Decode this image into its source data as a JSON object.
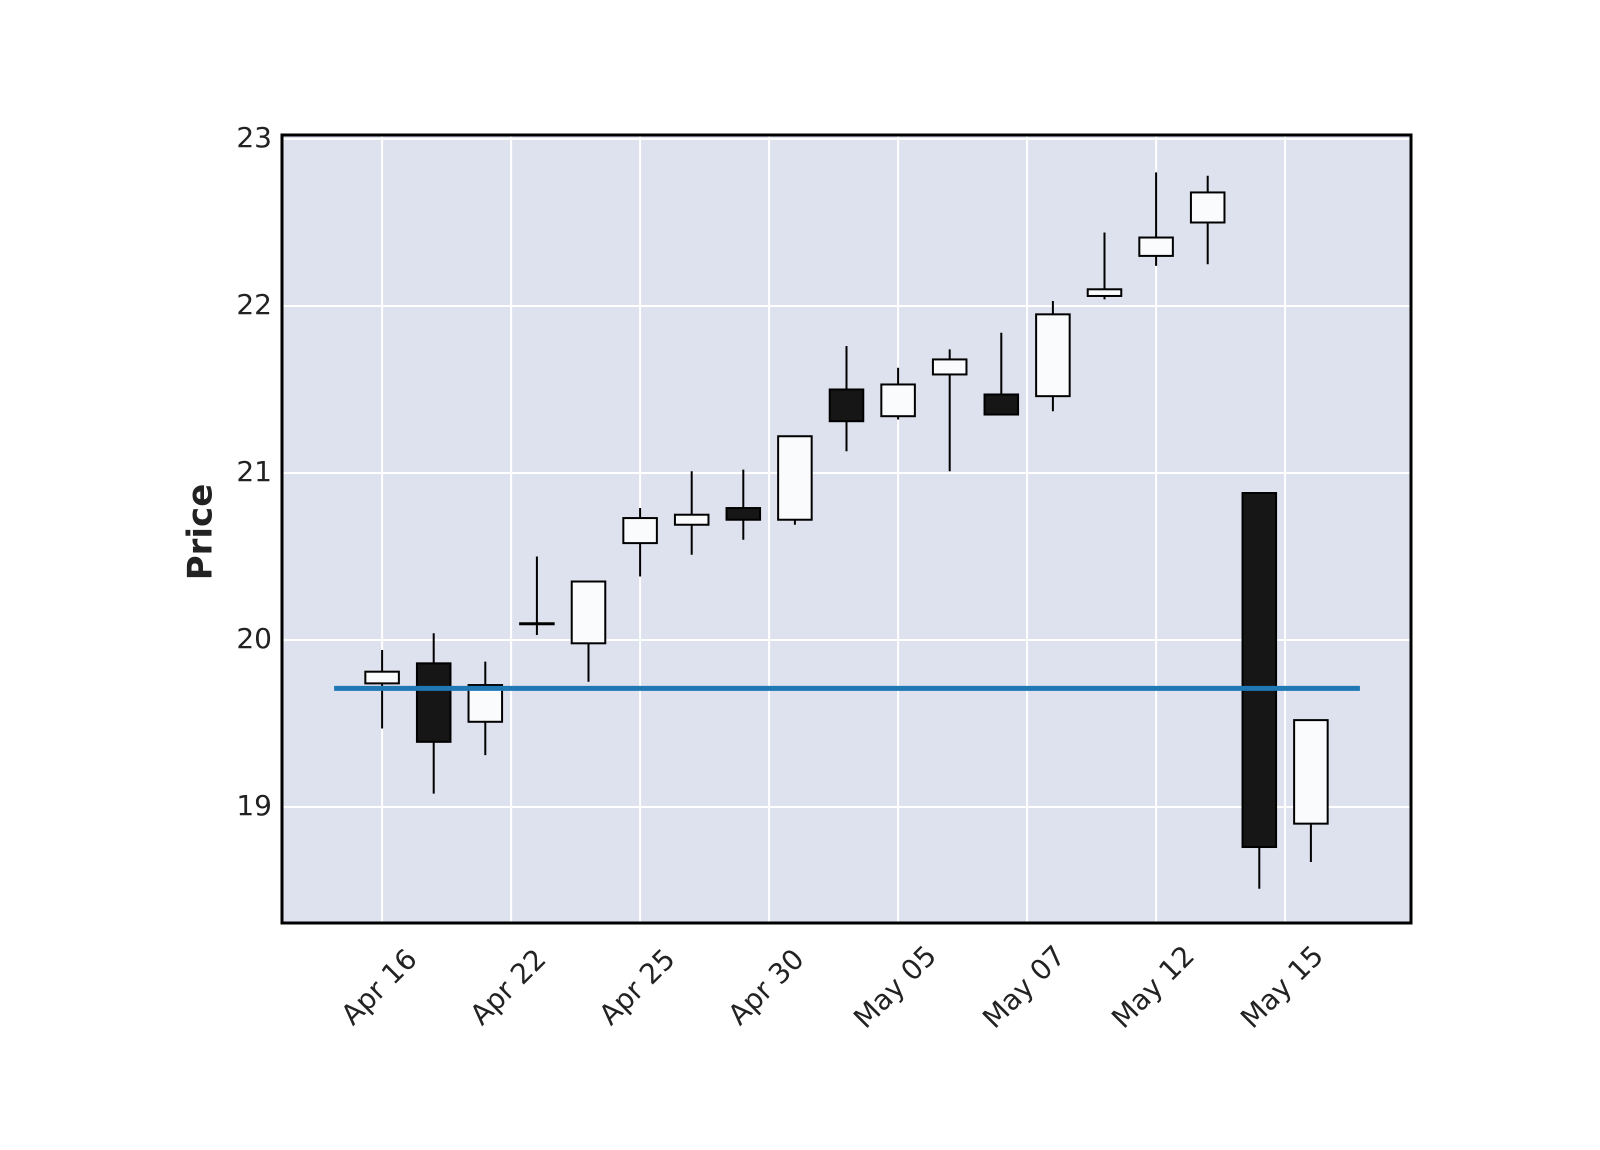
{
  "chart_data": {
    "type": "candlestick",
    "ylabel": "Price",
    "x": [
      0,
      1,
      2,
      3,
      4,
      5,
      6,
      7,
      8,
      9,
      10,
      11,
      12,
      13,
      14,
      15,
      16,
      17,
      18
    ],
    "open": [
      19.74,
      19.86,
      19.51,
      20.1,
      19.98,
      20.58,
      20.69,
      20.79,
      20.72,
      21.5,
      21.34,
      21.59,
      21.47,
      21.46,
      22.06,
      22.3,
      22.5,
      20.88,
      18.9
    ],
    "high": [
      19.94,
      20.04,
      19.87,
      20.5,
      20.35,
      20.79,
      21.01,
      21.02,
      21.22,
      21.76,
      21.63,
      21.74,
      21.84,
      22.03,
      22.44,
      22.8,
      22.78,
      20.88,
      19.52
    ],
    "low": [
      19.47,
      19.08,
      19.31,
      20.03,
      19.75,
      20.38,
      20.51,
      20.6,
      20.69,
      21.13,
      21.32,
      21.01,
      21.35,
      21.37,
      22.04,
      22.24,
      22.25,
      18.51,
      18.67
    ],
    "close": [
      19.81,
      19.39,
      19.73,
      20.1,
      20.35,
      20.73,
      20.75,
      20.72,
      21.22,
      21.31,
      21.53,
      21.68,
      21.35,
      21.95,
      22.1,
      22.41,
      22.68,
      18.76,
      19.52
    ],
    "up_color": "#fafbfd",
    "down_color": "#161616",
    "background": "#dde2ee",
    "hline": {
      "value": 19.71,
      "color": "#1f77b4",
      "xrange": [
        -0.93,
        18.95
      ]
    },
    "xlim": [
      -1.94,
      19.94
    ],
    "xticks": [
      {
        "value": 0,
        "label": "Apr 16"
      },
      {
        "value": 2.5,
        "label": "Apr 22"
      },
      {
        "value": 5,
        "label": "Apr 25"
      },
      {
        "value": 7.5,
        "label": "Apr 30"
      },
      {
        "value": 10,
        "label": "May 05"
      },
      {
        "value": 12.5,
        "label": "May 07"
      },
      {
        "value": 15,
        "label": "May 12"
      },
      {
        "value": 17.5,
        "label": "May 15"
      }
    ],
    "ylim": [
      18.305,
      23.024
    ],
    "yticks": [
      19,
      20,
      21,
      22,
      23
    ],
    "grid": true
  }
}
